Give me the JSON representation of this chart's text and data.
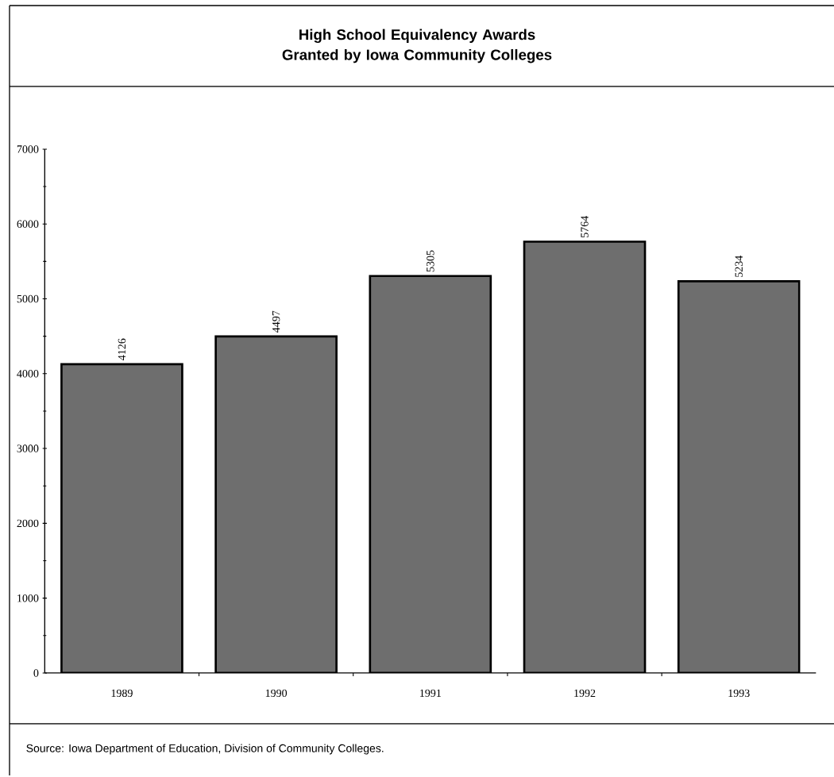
{
  "chart_data": {
    "type": "bar",
    "title": "High School Equivalency Awards Granted by Iowa Community Colleges",
    "categories": [
      "1989",
      "1990",
      "1991",
      "1992",
      "1993"
    ],
    "values": [
      4126,
      4497,
      5305,
      5764,
      5234
    ],
    "color": "#6e6e6e",
    "ylim": [
      0,
      7000
    ],
    "yticks": [
      0,
      1000,
      2000,
      3000,
      4000,
      5000,
      6000,
      7000
    ],
    "data_labels": true,
    "annotations": [
      "Source:  Iowa Department of Education, Division of Community Colleges."
    ]
  }
}
